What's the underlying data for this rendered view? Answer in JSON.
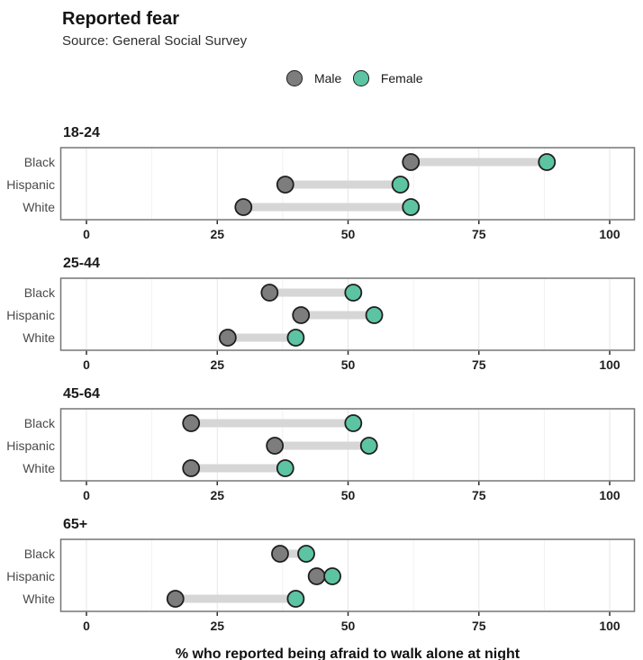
{
  "header": {
    "title": "Reported fear",
    "subtitle": "Source: General Social Survey"
  },
  "legend": {
    "items": [
      {
        "label": "Male",
        "color": "#7d7d7d"
      },
      {
        "label": "Female",
        "color": "#5cc4a2"
      }
    ]
  },
  "chart_data": {
    "type": "dumbbell",
    "title": "Reported fear",
    "subtitle": "Source: General Social Survey",
    "xlabel": "% who reported being afraid to walk alone at night",
    "legend_position": "top",
    "grid": true,
    "categories": [
      "Black",
      "Hispanic",
      "White"
    ],
    "series_names": [
      "Male",
      "Female"
    ],
    "xlim": [
      0,
      100
    ],
    "xticks": [
      0,
      25,
      50,
      75,
      100
    ],
    "minor_grid_step": 12.5,
    "facets": [
      {
        "title": "18-24",
        "series": {
          "Male": [
            62,
            38,
            30
          ],
          "Female": [
            88,
            60,
            62
          ]
        }
      },
      {
        "title": "25-44",
        "series": {
          "Male": [
            35,
            41,
            27
          ],
          "Female": [
            51,
            55,
            40
          ]
        }
      },
      {
        "title": "45-64",
        "series": {
          "Male": [
            20,
            36,
            20
          ],
          "Female": [
            51,
            54,
            38
          ]
        }
      },
      {
        "title": "65+",
        "series": {
          "Male": [
            37,
            44,
            17
          ],
          "Female": [
            42,
            47,
            40
          ]
        }
      }
    ],
    "colors": {
      "male_fill": "#7d7d7d",
      "female_fill": "#5cc4a2",
      "dot_stroke": "#1f1f1f",
      "connector": "#d6d6d6",
      "grid_major": "#e6e6e6",
      "grid_minor": "#f0f0f0",
      "panel_border": "#757575",
      "tick_mark": "#2e2e2e",
      "tick_text": "#1f1f1f",
      "category_text": "#4a4a4a"
    }
  }
}
